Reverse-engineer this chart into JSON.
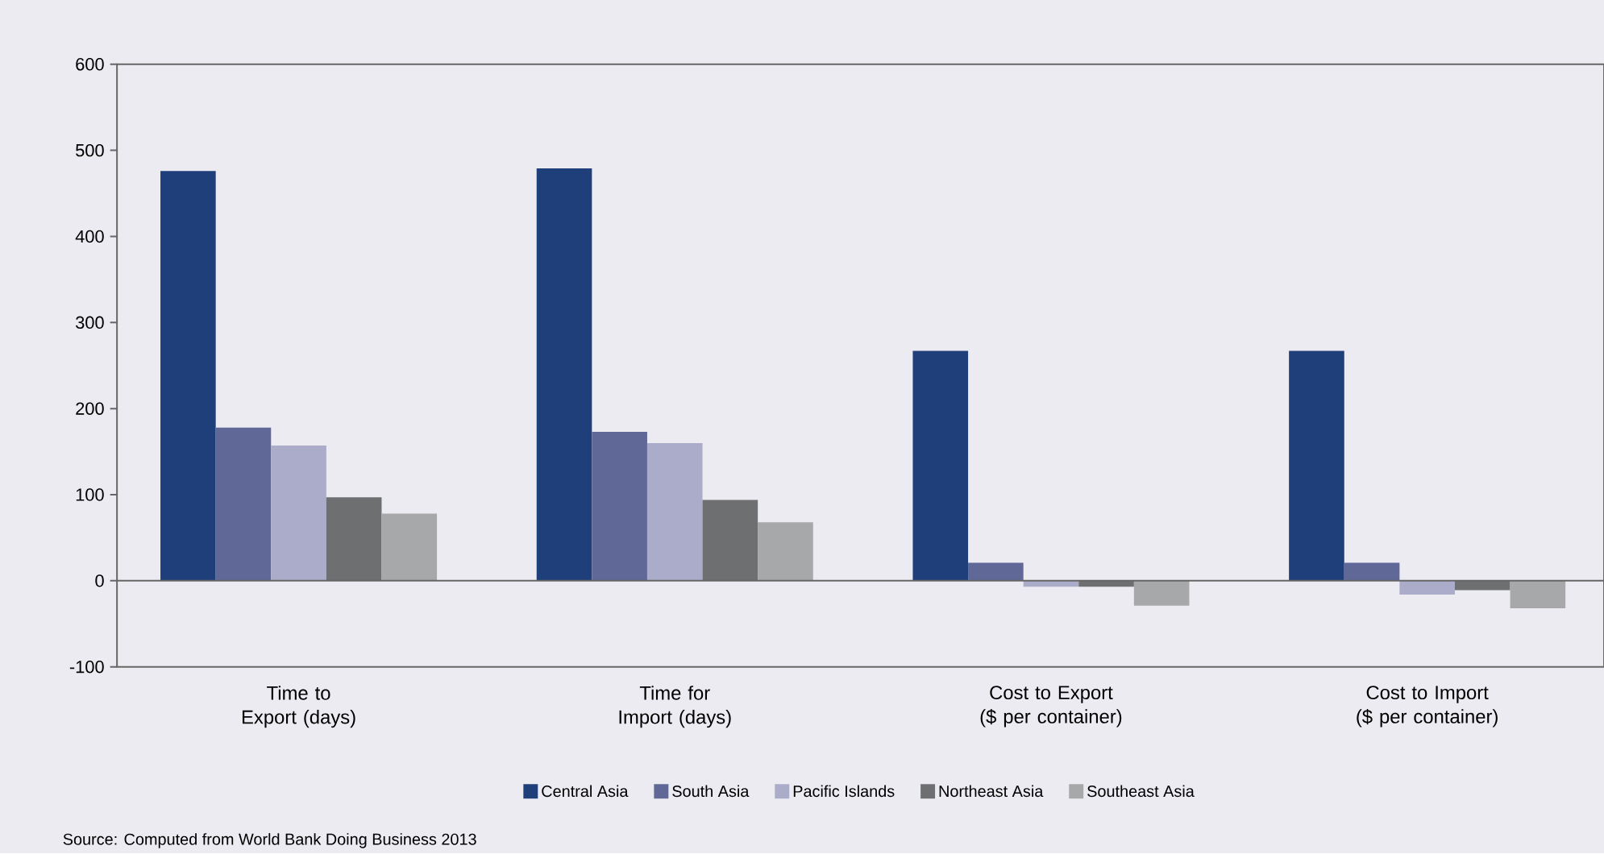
{
  "chart_data": {
    "type": "bar",
    "categories": [
      "Time to Export (days)",
      "Time for Import (days)",
      "Cost to Export ($ per container)",
      "Cost to Import ($ per container)"
    ],
    "series": [
      {
        "name": "Central Asia",
        "color": "#1f3f7a",
        "values": [
          476,
          479,
          267,
          267
        ]
      },
      {
        "name": "South Asia",
        "color": "#606898",
        "values": [
          178,
          173,
          21,
          21
        ]
      },
      {
        "name": "Pacific Islands",
        "color": "#aaacc9",
        "values": [
          157,
          160,
          -7,
          -16
        ]
      },
      {
        "name": "Northeast Asia",
        "color": "#6e6f71",
        "values": [
          97,
          94,
          -7,
          -11
        ]
      },
      {
        "name": "Southeast Asia",
        "color": "#a6a8aa",
        "values": [
          78,
          68,
          -29,
          -32
        ]
      }
    ],
    "ylim": [
      -100,
      600
    ],
    "yticks": [
      -100,
      0,
      100,
      200,
      300,
      400,
      500,
      600
    ],
    "legend": "bottom",
    "annotations": [
      "Source: Computed from World Bank Doing Business 2013"
    ]
  }
}
